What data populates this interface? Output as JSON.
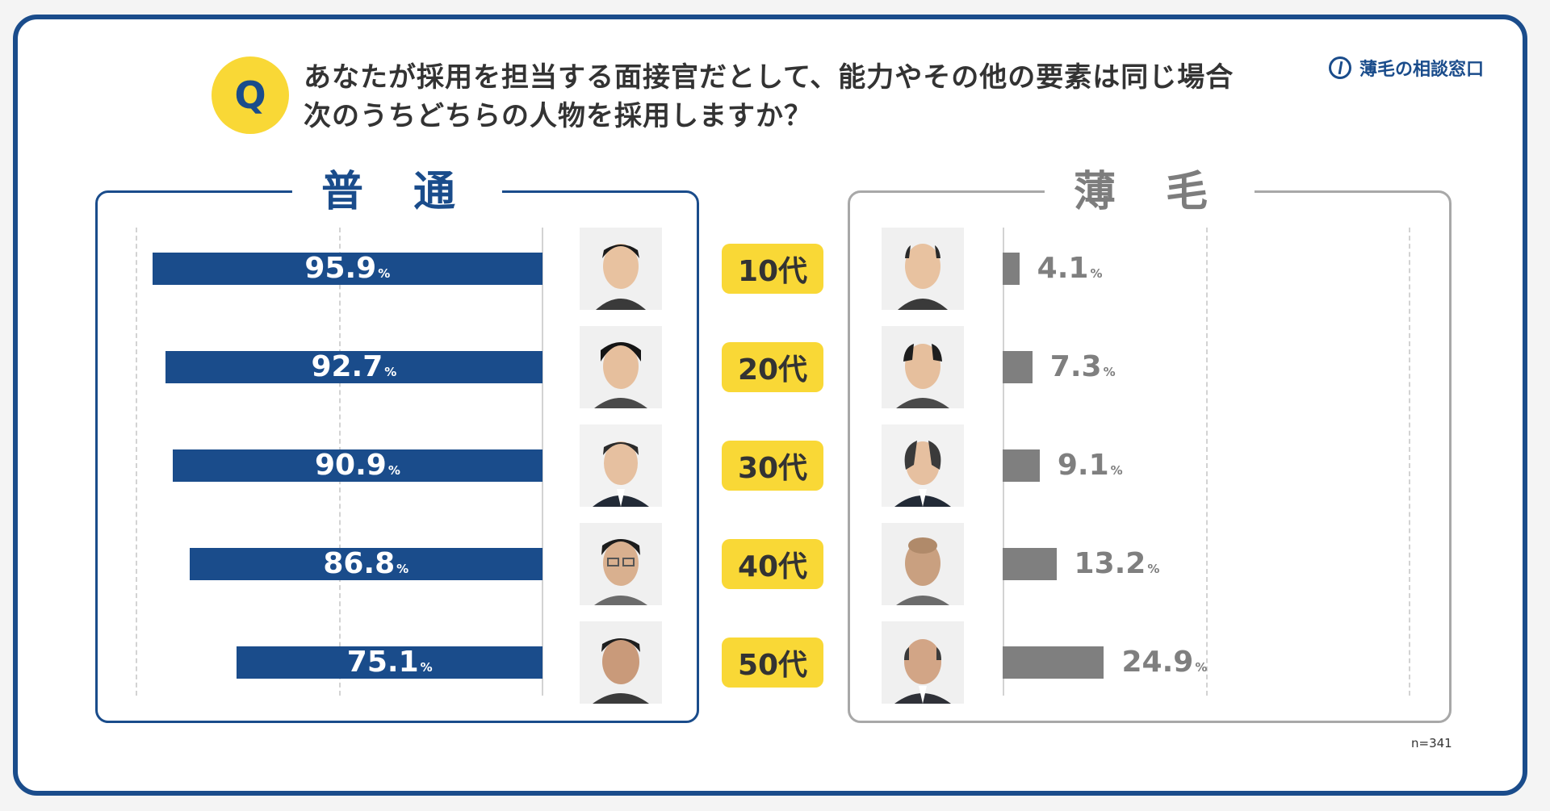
{
  "logo": {
    "text": "薄毛の相談窓口"
  },
  "question": {
    "badge": "Q",
    "line1": "あなたが採用を担当する面接官だとして、能力やその他の要素は同じ場合",
    "line2": "次のうちどちらの人物を採用しますか？"
  },
  "chart_data": {
    "type": "bar",
    "categories": [
      "10代",
      "20代",
      "30代",
      "40代",
      "50代"
    ],
    "series": [
      {
        "name": "普通",
        "values": [
          95.9,
          92.7,
          90.9,
          86.8,
          75.1
        ],
        "color": "#1a4c8b"
      },
      {
        "name": "薄毛",
        "values": [
          4.1,
          7.3,
          9.1,
          13.2,
          24.9
        ],
        "color": "#7f7f7f"
      }
    ],
    "unit": "%",
    "xlim": [
      0,
      100
    ]
  },
  "labels": {
    "normal_title": "普 通",
    "thin_title": "薄 毛",
    "normal_values": [
      "95.9",
      "92.7",
      "90.9",
      "86.8",
      "75.1"
    ],
    "thin_values": [
      "4.1",
      "7.3",
      "9.1",
      "13.2",
      "24.9"
    ],
    "unit": "%",
    "note": "n=341"
  },
  "colors": {
    "accent": "#1a4c8b",
    "badge": "#f9d836",
    "thin": "#7f7f7f"
  }
}
